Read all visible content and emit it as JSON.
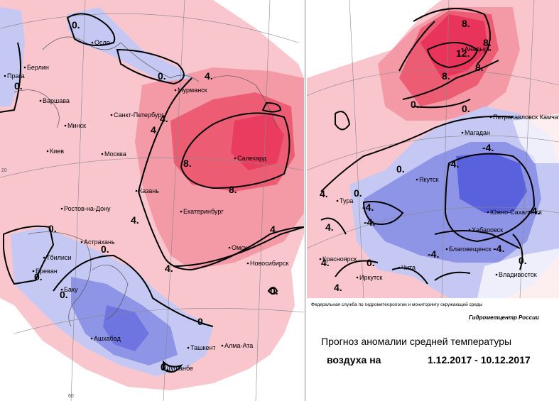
{
  "colors": {
    "warm_light": "#f8c6cc",
    "warm_mid": "#f39aa6",
    "warm_strong": "#ec5d74",
    "warm_max": "#e8345a",
    "cool_light": "#c5c8f2",
    "cool_mid": "#8f95e6",
    "cool_strong": "#5a61dc",
    "neutral": "#fbe3e6"
  },
  "left_map": {
    "cities": [
      "Осло",
      "Берлин",
      "Прага",
      "Варшава",
      "Мурманск",
      "Санкт-Петербург",
      "Минск",
      "Киев",
      "Москва",
      "Салехард",
      "Казань",
      "Ростов-на-Дону",
      "Екатеринбург",
      "Астрахань",
      "Тбилиси",
      "Ереван",
      "Омск",
      "Новосибирск",
      "Баку",
      "Ашхабад",
      "Ташкент",
      "Алма-Ата",
      "Душанбе"
    ],
    "isoline_labels": [
      "0.",
      "0.",
      "0.",
      "4.",
      "4.",
      "4.",
      "8.",
      "8.",
      "4.",
      "4.",
      "4.",
      "0.",
      "0.",
      "0.",
      "0.",
      "0.",
      "0.",
      "0."
    ],
    "grid_numbers": [
      "20",
      "60"
    ]
  },
  "right_map": {
    "cities": [
      "Анадырь",
      "Петропавловск Камчатский",
      "Магадан",
      "Якутск",
      "Тура",
      "Южно-Сахалинск",
      "Хабаровск",
      "Благовещенск",
      "Красноярск",
      "Чита",
      "Иркутск",
      "Владивосток"
    ],
    "isoline_labels": [
      "8.",
      "8.",
      "12.",
      "8.",
      "8.",
      "0.",
      "0.",
      "0.",
      "-4.",
      "-4.",
      "-4.",
      "-4.",
      "-4.",
      "-4.",
      "-4.",
      "4.",
      "4.",
      "0.",
      "0.",
      "4.",
      "4.",
      "0."
    ]
  },
  "credits": {
    "agency": "Федеральная служба по гидрометеорологии и мониторингу окружающей среды",
    "center": "Гидрометцентр России"
  },
  "title": {
    "line1": "Прогноз аномалии средней температуры",
    "line2_prefix": "воздуха на",
    "line2_dates": "1.12.2017 - 10.12.2017"
  }
}
